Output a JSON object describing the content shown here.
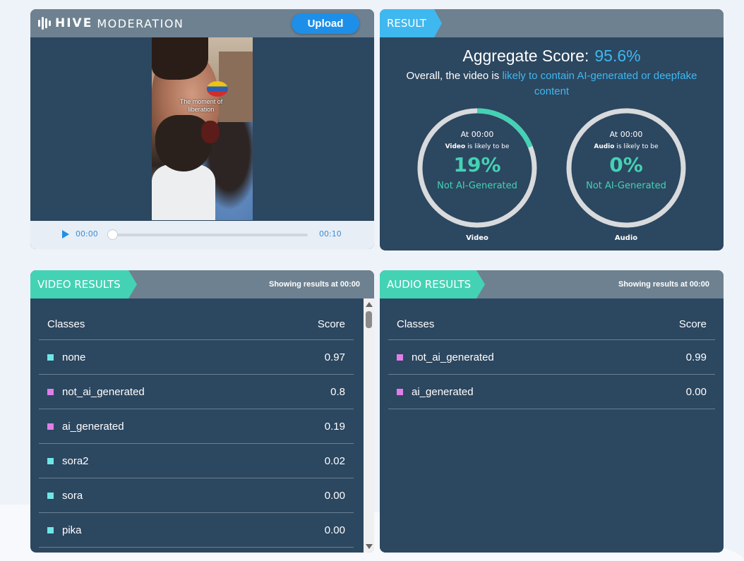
{
  "brand": {
    "name_bold": "HIVE",
    "name_light": "MODERATION"
  },
  "player": {
    "upload_label": "Upload",
    "caption": "The moment of liberation",
    "current_time": "00:00",
    "end_time": "00:10",
    "progress_fraction": 0
  },
  "result": {
    "header": "RESULT",
    "aggregate_label": "Aggregate Score:",
    "aggregate_value": "95.6%",
    "overall_prefix": "Overall, the video is ",
    "overall_highlight": "likely to contain AI-generated or deepfake content",
    "gauges": [
      {
        "at": "At 00:00",
        "media": "Video",
        "likely": " is likely to be",
        "pct": "19%",
        "fraction": 0.19,
        "verdict": "Not AI-Generated",
        "label": "Video"
      },
      {
        "at": "At 00:00",
        "media": "Audio",
        "likely": " is likely to be",
        "pct": "0%",
        "fraction": 0,
        "verdict": "Not AI-Generated",
        "label": "Audio"
      }
    ],
    "colors": {
      "accent_blue": "#3fb8f0",
      "accent_green": "#44d2b4",
      "ring_gray": "#d8dadc"
    }
  },
  "video_results": {
    "header": "VIDEO RESULTS",
    "showing_prefix": "Showing results at ",
    "showing_time": "00:00",
    "col_class": "Classes",
    "col_score": "Score",
    "rows": [
      {
        "cls": "none",
        "score": "0.97",
        "color": "#6fe6e6"
      },
      {
        "cls": "not_ai_generated",
        "score": "0.8",
        "color": "#e07ee8"
      },
      {
        "cls": "ai_generated",
        "score": "0.19",
        "color": "#e07ee8"
      },
      {
        "cls": "sora2",
        "score": "0.02",
        "color": "#6fe6e6"
      },
      {
        "cls": "sora",
        "score": "0.00",
        "color": "#6fe6e6"
      },
      {
        "cls": "pika",
        "score": "0.00",
        "color": "#6fe6e6"
      }
    ]
  },
  "audio_results": {
    "header": "AUDIO RESULTS",
    "showing_prefix": "Showing results at ",
    "showing_time": "00:00",
    "col_class": "Classes",
    "col_score": "Score",
    "rows": [
      {
        "cls": "not_ai_generated",
        "score": "0.99",
        "color": "#e07ee8"
      },
      {
        "cls": "ai_generated",
        "score": "0.00",
        "color": "#e07ee8"
      }
    ]
  }
}
